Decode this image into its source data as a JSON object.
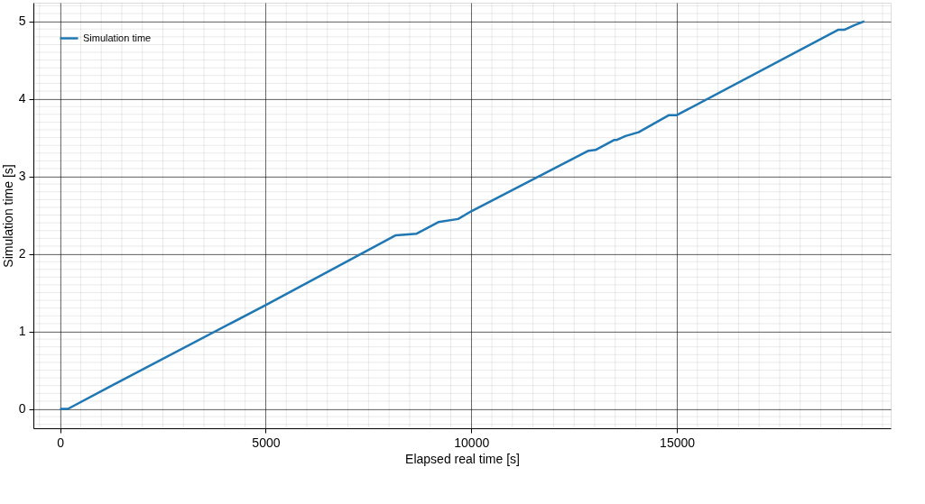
{
  "chart_data": {
    "type": "line",
    "xlabel": "Elapsed real time [s]",
    "ylabel": "Simulation time [s]",
    "x": [
      0,
      190,
      1290,
      5000,
      8165,
      8670,
      9200,
      9680,
      10000,
      12850,
      13020,
      13480,
      13540,
      13750,
      14070,
      14810,
      15000,
      18920,
      19070,
      19320,
      19560
    ],
    "series": [
      {
        "name": "Simulation time",
        "color": "#1f77b4",
        "values": [
          0,
          0,
          0.31,
          1.34,
          2.24,
          2.26,
          2.41,
          2.45,
          2.55,
          3.33,
          3.34,
          3.47,
          3.47,
          3.52,
          3.57,
          3.79,
          3.79,
          4.89,
          4.89,
          4.95,
          5.0
        ]
      }
    ],
    "xlim": [
      -650,
      20200
    ],
    "ylim": [
      -0.25,
      5.24
    ],
    "xticks": [
      0,
      5000,
      10000,
      15000
    ],
    "yticks": [
      0,
      1,
      2,
      3,
      4,
      5
    ],
    "grid": true,
    "legend": "top left",
    "marker": "none",
    "line_style": "solid"
  }
}
